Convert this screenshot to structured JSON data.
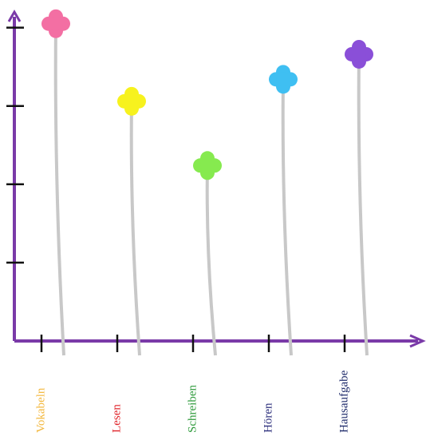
{
  "chart_data": {
    "type": "lollipop",
    "categories": [
      "Vokabeln",
      "Lesen",
      "Schreiben",
      "Hören",
      "Hausaufgabe"
    ],
    "values": [
      4.05,
      3.06,
      2.24,
      3.34,
      3.66
    ],
    "colors": [
      "#f36fa3",
      "#f7f21e",
      "#86ea4f",
      "#3fbff2",
      "#8a4fd8"
    ],
    "label_colors": [
      "#f3b83f",
      "#e0242a",
      "#2f9b3c",
      "#2c2f7c",
      "#1f2b6b"
    ],
    "axis_color": "#7a3aa8",
    "stem_color": "#c8c8c8",
    "ylim": [
      0,
      4.2
    ],
    "yticks": [
      1,
      2,
      3,
      4
    ]
  }
}
